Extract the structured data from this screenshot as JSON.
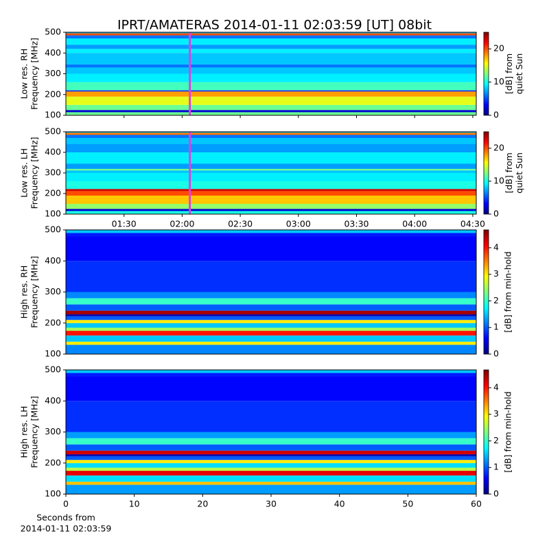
{
  "chart_data": [
    {
      "type": "heatmap",
      "title": "IPRT/AMATERAS 2014-01-11 02:03:59 [UT]   08bit",
      "ylabel": [
        "Low res. RH",
        "Frequency [MHz]"
      ],
      "xlim": [
        60,
        271.8
      ],
      "ylim": [
        100,
        500
      ],
      "yticks": [
        100,
        200,
        300,
        400,
        500
      ],
      "cursor_x": 123.98,
      "cursor_color": "#e040e0",
      "y_edges": [
        100,
        115,
        125,
        150,
        190,
        215,
        220,
        260,
        300,
        330,
        345,
        400,
        420,
        440,
        470,
        485,
        495,
        500
      ],
      "values": [
        12,
        2,
        12,
        15,
        18,
        3,
        11,
        9,
        8,
        6,
        8,
        9,
        7,
        9,
        6,
        20,
        8
      ],
      "clim": [
        0,
        25
      ],
      "cticks": [
        0,
        10,
        20
      ],
      "clabel": [
        "[dB] from",
        "quiet Sun"
      ]
    },
    {
      "type": "heatmap",
      "ylabel": [
        "Low res. LH",
        "Frequency [MHz]"
      ],
      "xlim": [
        60,
        271.8
      ],
      "ylim": [
        100,
        500
      ],
      "yticks": [
        100,
        200,
        300,
        400,
        500
      ],
      "xticks": [
        {
          "value": 90,
          "label": "01:30"
        },
        {
          "value": 120,
          "label": "02:00"
        },
        {
          "value": 150,
          "label": "02:30"
        },
        {
          "value": 180,
          "label": "03:00"
        },
        {
          "value": 210,
          "label": "03:30"
        },
        {
          "value": 240,
          "label": "04:00"
        },
        {
          "value": 270,
          "label": "04:30"
        }
      ],
      "cursor_x": 123.98,
      "cursor_color": "#e040e0",
      "y_edges": [
        100,
        115,
        125,
        150,
        190,
        212,
        222,
        260,
        300,
        312,
        320,
        345,
        400,
        440,
        470,
        485,
        495,
        500
      ],
      "values": [
        10,
        2,
        13,
        17,
        20,
        23,
        10,
        9,
        8,
        12,
        7,
        9,
        7,
        8,
        6,
        19,
        8
      ],
      "clim": [
        0,
        25
      ],
      "cticks": [
        0,
        10,
        20
      ],
      "clabel": [
        "[dB] from",
        "quiet Sun"
      ]
    },
    {
      "type": "heatmap",
      "ylabel": [
        "High res. RH",
        "Frequency [MHz]"
      ],
      "xlim": [
        0,
        60
      ],
      "ylim": [
        100,
        500
      ],
      "yticks": [
        100,
        200,
        300,
        400,
        500
      ],
      "y_edges": [
        100,
        130,
        140,
        160,
        175,
        185,
        200,
        210,
        222,
        228,
        240,
        260,
        280,
        300,
        400,
        480,
        490,
        500
      ],
      "values": [
        1.2,
        3,
        1.5,
        4,
        2.5,
        1.5,
        3,
        1,
        0.2,
        4.5,
        1,
        2,
        1.2,
        0.8,
        0.6,
        0.7,
        1.5
      ],
      "clim": [
        0,
        4.67
      ],
      "cticks": [
        0,
        1,
        2,
        3,
        4
      ],
      "clabel": [
        "[dB] from min-hold"
      ]
    },
    {
      "type": "heatmap",
      "ylabel": [
        "High res. LH",
        "Frequency [MHz]"
      ],
      "xlim": [
        0,
        60
      ],
      "ylim": [
        100,
        500
      ],
      "yticks": [
        100,
        200,
        300,
        400,
        500
      ],
      "xticks": [
        0,
        10,
        20,
        30,
        40,
        50,
        60
      ],
      "xlabel": [
        "Seconds from",
        "2014-01-11 02:03:59"
      ],
      "y_edges": [
        100,
        130,
        140,
        160,
        175,
        185,
        200,
        210,
        222,
        228,
        240,
        260,
        280,
        300,
        400,
        480,
        490,
        500
      ],
      "values": [
        1.3,
        3.2,
        1.6,
        4.2,
        2.6,
        1.6,
        3,
        1,
        0.2,
        4.3,
        1,
        2,
        1.3,
        0.8,
        0.6,
        0.7,
        1.5
      ],
      "clim": [
        0,
        4.67
      ],
      "cticks": [
        0,
        1,
        2,
        3,
        4
      ],
      "clabel": [
        "[dB] from min-hold"
      ]
    }
  ]
}
